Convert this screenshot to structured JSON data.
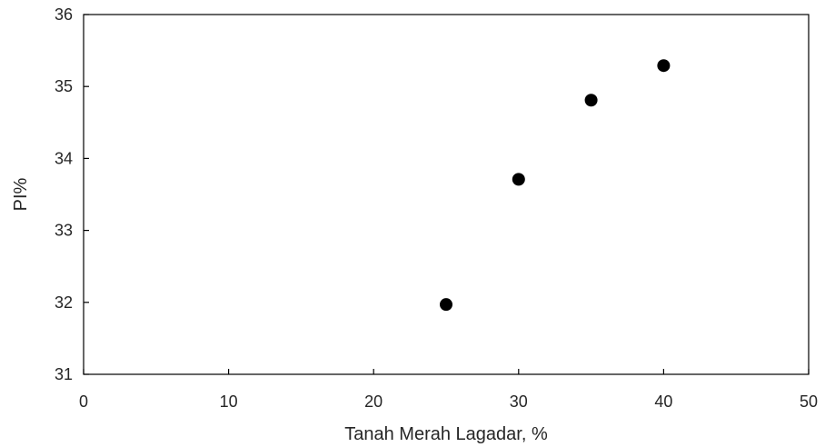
{
  "chart_data": {
    "type": "scatter",
    "title": "",
    "xlabel": "Tanah Merah Lagadar, %",
    "ylabel": "PI%",
    "xlim": [
      0,
      50
    ],
    "ylim": [
      31,
      36
    ],
    "xticks": [
      0,
      10,
      20,
      30,
      40,
      50
    ],
    "yticks": [
      31,
      32,
      33,
      34,
      35,
      36
    ],
    "grid": false,
    "legend": "none",
    "marker_color": "#000000",
    "series": [
      {
        "x": [
          25,
          30,
          35,
          40
        ],
        "y": [
          31.97,
          33.71,
          34.81,
          35.29
        ]
      }
    ]
  }
}
